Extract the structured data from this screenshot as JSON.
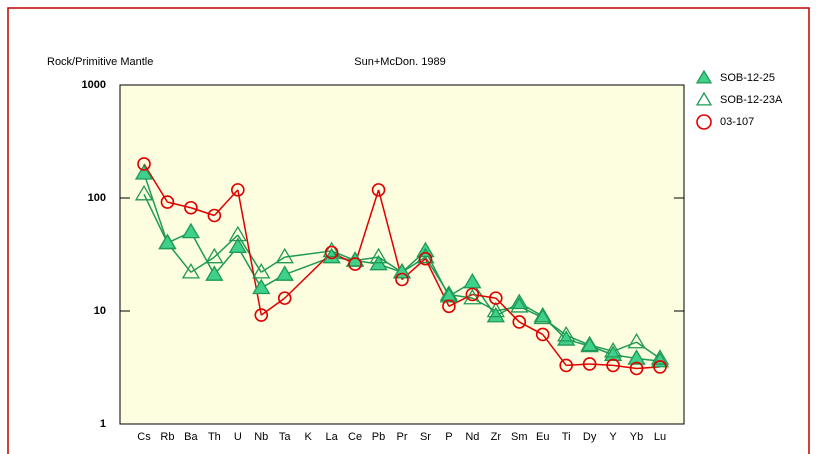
{
  "chart_data": {
    "type": "spider",
    "title": "Sun+McDon. 1989",
    "y_label": "Rock/Primitive Mantle",
    "log_scale": true,
    "legend": "right",
    "categories": [
      "Cs",
      "Rb",
      "Ba",
      "Th",
      "U",
      "Nb",
      "Ta",
      "K",
      "La",
      "Ce",
      "Pb",
      "Pr",
      "Sr",
      "P",
      "Nd",
      "Zr",
      "Sm",
      "Eu",
      "Ti",
      "Dy",
      "Y",
      "Yb",
      "Lu"
    ],
    "ylim": [
      1,
      1000
    ],
    "yticks": [
      1,
      10,
      100,
      1000
    ],
    "series": [
      {
        "name": "SOB-12-25",
        "color": "#1f9a55",
        "marker": "triangle-filled",
        "values": [
          165,
          40,
          50,
          21,
          37,
          16,
          21,
          null,
          30,
          28,
          26,
          22,
          34,
          13.5,
          18,
          9,
          11.8,
          9,
          5.6,
          4.9,
          4.1,
          3.8,
          3.6
        ]
      },
      {
        "name": "SOB-12-23A",
        "color": "#1f9a55",
        "marker": "triangle-open",
        "values": [
          108,
          40,
          22,
          30,
          47,
          22,
          30,
          null,
          34,
          28,
          30,
          22,
          30,
          14,
          13,
          10,
          11,
          8.7,
          6.1,
          5,
          4.4,
          5.3,
          3.8
        ]
      },
      {
        "name": "03-107",
        "color": "#e00000",
        "marker": "circle-open",
        "values": [
          200,
          92,
          82,
          70,
          118,
          9.2,
          13,
          null,
          33,
          26,
          118,
          19,
          29,
          11,
          14,
          13,
          8,
          6.2,
          3.3,
          3.4,
          3.3,
          3.1,
          3.2
        ]
      }
    ]
  }
}
